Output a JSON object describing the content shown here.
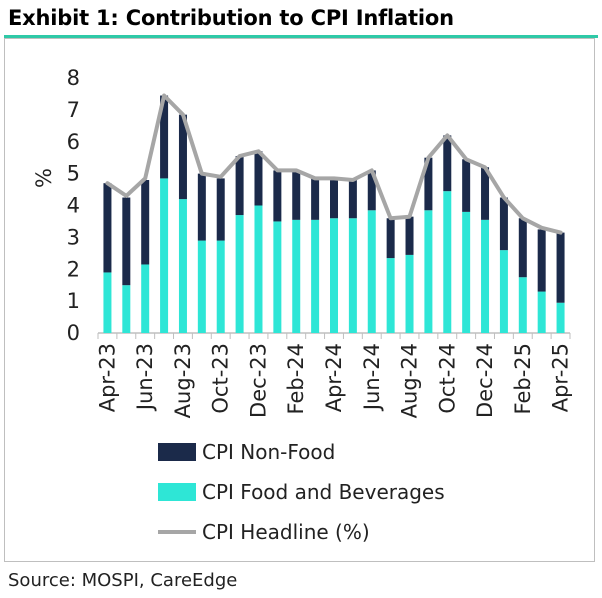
{
  "title": "Exhibit 1: Contribution to CPI Inflation",
  "source": "Source: MOSPI, CareEdge",
  "chart_data": {
    "type": "bar",
    "stacked": true,
    "ylabel": "%",
    "ylim": [
      0,
      8
    ],
    "yticks": [
      "0",
      "1",
      "2",
      "3",
      "4",
      "5",
      "6",
      "7",
      "8"
    ],
    "categories": [
      "Apr-23",
      "May-23",
      "Jun-23",
      "Jul-23",
      "Aug-23",
      "Sep-23",
      "Oct-23",
      "Nov-23",
      "Dec-23",
      "Jan-24",
      "Feb-24",
      "Mar-24",
      "Apr-24",
      "May-24",
      "Jun-24",
      "Jul-24",
      "Aug-24",
      "Sep-24",
      "Oct-24",
      "Nov-24",
      "Dec-24",
      "Jan-25",
      "Feb-25",
      "Mar-25",
      "Apr-25"
    ],
    "xtick_labels": [
      "Apr-23",
      "Jun-23",
      "Aug-23",
      "Oct-23",
      "Dec-23",
      "Feb-24",
      "Apr-24",
      "Jun-24",
      "Aug-24",
      "Oct-24",
      "Dec-24",
      "Feb-25",
      "Apr-25"
    ],
    "series": [
      {
        "name": "CPI Food and Beverages",
        "color": "#2ee6d6",
        "values": [
          1.9,
          1.5,
          2.15,
          4.85,
          4.2,
          2.9,
          2.9,
          3.7,
          4.0,
          3.5,
          3.55,
          3.55,
          3.6,
          3.6,
          3.85,
          2.35,
          2.45,
          3.85,
          4.45,
          3.8,
          3.55,
          2.6,
          1.75,
          1.3,
          0.95
        ]
      },
      {
        "name": "CPI Non-Food",
        "color": "#1b2a4a",
        "values": [
          2.8,
          2.75,
          2.65,
          2.6,
          2.65,
          2.1,
          1.95,
          1.85,
          1.7,
          1.6,
          1.55,
          1.3,
          1.25,
          1.2,
          1.25,
          1.25,
          1.2,
          1.65,
          1.75,
          1.65,
          1.65,
          1.65,
          1.85,
          1.95,
          2.2
        ]
      },
      {
        "name": "CPI Headline (%)",
        "color": "#a6a6a6",
        "type": "line",
        "values": [
          4.7,
          4.3,
          4.85,
          7.45,
          6.85,
          5.0,
          4.9,
          5.55,
          5.7,
          5.1,
          5.1,
          4.85,
          4.85,
          4.8,
          5.1,
          3.6,
          3.65,
          5.5,
          6.2,
          5.45,
          5.2,
          4.25,
          3.6,
          3.3,
          3.15
        ]
      }
    ],
    "legend": [
      "CPI Non-Food",
      "CPI Food and Beverages",
      "CPI Headline (%)"
    ],
    "legend_position": "bottom-left",
    "grid": false
  }
}
